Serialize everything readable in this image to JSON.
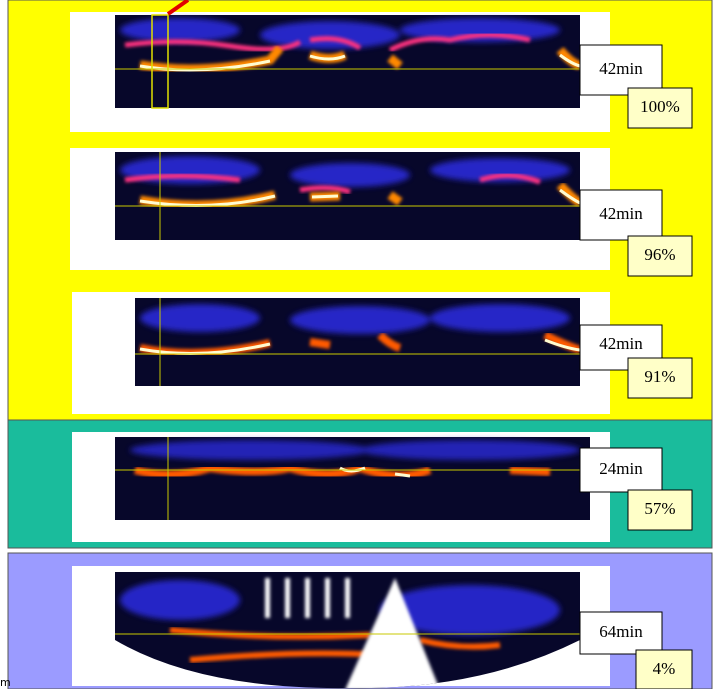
{
  "panels": [
    {
      "duration": "42min",
      "score": "100%"
    },
    {
      "duration": "42min",
      "score": "96%"
    },
    {
      "duration": "42min",
      "score": "91%"
    },
    {
      "duration": "24min",
      "score": "57%"
    },
    {
      "duration": "64min",
      "score": "4%"
    }
  ],
  "footer_fragment": "m"
}
